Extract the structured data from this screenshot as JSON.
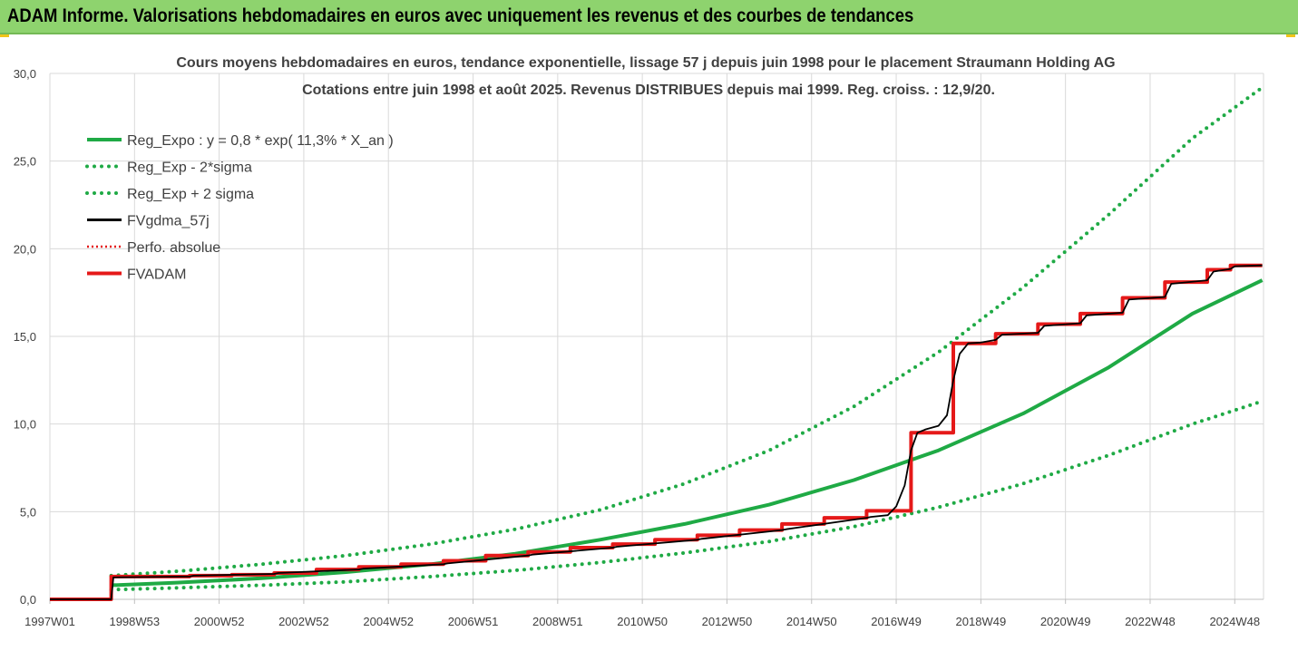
{
  "header": {
    "title": "ADAM Informe. Valorisations hebdomadaires en euros avec uniquement les revenus et des courbes de tendances"
  },
  "colors": {
    "header_bg": "#8ed36e",
    "reg_green": "#1faa45",
    "fvgdma_black": "#000000",
    "fvadam_red": "#e51919",
    "gridline": "#d9d9d9"
  },
  "chart_data": {
    "type": "line",
    "title": [
      "Cours moyens hebdomadaires en euros, tendance exponentielle, lissage 57 j depuis juin 1998 pour le placement Straumann Holding AG",
      "Cotations entre juin 1998 et août 2025. Revenus DISTRIBUES depuis mai 1999. Reg. croiss. : 12,9/20."
    ],
    "x_tick_labels": [
      "1997W01",
      "1998W53",
      "2000W52",
      "2002W52",
      "2004W52",
      "2006W51",
      "2008W51",
      "2010W50",
      "2012W50",
      "2014W50",
      "2016W49",
      "2018W49",
      "2020W49",
      "2022W48",
      "2024W48"
    ],
    "x_range": [
      "1997W01",
      "2025W35"
    ],
    "y_tick_labels": [
      "0,0",
      "5,0",
      "10,0",
      "15,0",
      "20,0",
      "25,0",
      "30,0"
    ],
    "ylim": [
      0,
      30
    ],
    "grid": true,
    "legend_position": "top-left",
    "legend": [
      {
        "name": "Reg_Expo : y = 0,8 * exp( 11,3% *  X_an )",
        "color": "#1faa45",
        "style": "solid"
      },
      {
        "name": "Reg_Exp - 2*sigma",
        "color": "#1faa45",
        "style": "dotted"
      },
      {
        "name": "Reg_Exp + 2 sigma",
        "color": "#1faa45",
        "style": "dotted"
      },
      {
        "name": "FVgdma_57j",
        "color": "#000000",
        "style": "solid"
      },
      {
        "name": "Perfo. absolue",
        "color": "#e51919",
        "style": "dotted"
      },
      {
        "name": "FVADAM",
        "color": "#e51919",
        "style": "solid"
      }
    ],
    "series": {
      "reg_expo": {
        "x": [
          1998.45,
          2000,
          2002,
          2004,
          2006,
          2008,
          2010,
          2012,
          2014,
          2016,
          2018,
          2020,
          2022,
          2024,
          2025.65
        ],
        "y": [
          0.8,
          0.95,
          1.2,
          1.55,
          2.0,
          2.6,
          3.4,
          4.3,
          5.4,
          6.8,
          8.5,
          10.6,
          13.2,
          16.3,
          18.2
        ]
      },
      "reg_minus": {
        "x": [
          1998.45,
          2000,
          2002,
          2004,
          2006,
          2008,
          2010,
          2012,
          2014,
          2016,
          2018,
          2020,
          2022,
          2024,
          2025.65
        ],
        "y": [
          0.55,
          0.65,
          0.8,
          1.0,
          1.3,
          1.65,
          2.1,
          2.65,
          3.3,
          4.15,
          5.25,
          6.6,
          8.2,
          10.0,
          11.3
        ]
      },
      "reg_plus": {
        "x": [
          1998.45,
          2000,
          2002,
          2004,
          2006,
          2008,
          2010,
          2012,
          2014,
          2016,
          2018,
          2020,
          2022,
          2024,
          2025.65
        ],
        "y": [
          1.35,
          1.6,
          2.0,
          2.5,
          3.15,
          4.0,
          5.1,
          6.6,
          8.5,
          11.0,
          14.1,
          17.8,
          21.9,
          26.3,
          29.2
        ]
      },
      "fvadam": {
        "x": [
          1997.0,
          1998.45,
          1998.45,
          2000.3,
          2000.3,
          2001.3,
          2001.3,
          2002.3,
          2002.3,
          2003.3,
          2003.3,
          2004.3,
          2004.3,
          2005.3,
          2005.3,
          2006.3,
          2006.3,
          2007.3,
          2007.3,
          2008.3,
          2008.3,
          2009.3,
          2009.3,
          2010.3,
          2010.3,
          2011.3,
          2011.3,
          2012.3,
          2012.3,
          2013.3,
          2013.3,
          2014.3,
          2014.3,
          2015.3,
          2015.3,
          2016.3,
          2016.3,
          2017.35,
          2017.35,
          2018.35,
          2018.35,
          2019.35,
          2019.35,
          2020.35,
          2020.35,
          2021.35,
          2021.35,
          2022.35,
          2022.35,
          2023.35,
          2023.35,
          2024.35,
          2024.35,
          2024.9,
          2024.9,
          2025.65
        ],
        "y": [
          0,
          0,
          1.3,
          1.3,
          1.35,
          1.35,
          1.4,
          1.4,
          1.5,
          1.5,
          1.7,
          1.7,
          1.85,
          1.85,
          2.0,
          2.0,
          2.2,
          2.2,
          2.5,
          2.5,
          2.7,
          2.7,
          2.95,
          2.95,
          3.15,
          3.15,
          3.4,
          3.4,
          3.65,
          3.65,
          3.95,
          3.95,
          4.3,
          4.3,
          4.65,
          4.65,
          5.05,
          5.05,
          9.5,
          9.5,
          14.6,
          14.6,
          15.15,
          15.15,
          15.7,
          15.7,
          16.3,
          16.3,
          17.2,
          17.2,
          18.1,
          18.1,
          18.8,
          18.8,
          19.05,
          19.05
        ]
      },
      "fvgdma": {
        "x": [
          1997.0,
          1998.45,
          1998.5,
          2000.3,
          2000.4,
          2002.3,
          2002.4,
          2004.3,
          2004.4,
          2006.3,
          2006.4,
          2008.3,
          2008.4,
          2010.3,
          2010.4,
          2012.3,
          2012.4,
          2014.3,
          2014.4,
          2016.3,
          2016.4,
          2016.8,
          2017.0,
          2017.2,
          2017.35,
          2017.5,
          2017.7,
          2018.0,
          2018.2,
          2018.35,
          2018.5,
          2018.7,
          2019.0,
          2019.35,
          2019.5,
          2020.35,
          2020.5,
          2021.35,
          2021.5,
          2022.35,
          2022.5,
          2023.35,
          2023.5,
          2024.35,
          2024.5,
          2024.9,
          2025.0,
          2025.65
        ],
        "y": [
          0,
          0,
          1.25,
          1.3,
          1.35,
          1.45,
          1.5,
          1.7,
          1.75,
          2.0,
          2.05,
          2.5,
          2.55,
          2.95,
          3.0,
          3.4,
          3.45,
          3.95,
          4.0,
          4.65,
          4.7,
          4.8,
          5.3,
          6.5,
          8.5,
          9.5,
          9.7,
          9.9,
          10.5,
          12.5,
          14.0,
          14.6,
          14.65,
          14.8,
          15.1,
          15.2,
          15.6,
          15.75,
          16.2,
          16.35,
          17.1,
          17.25,
          18.0,
          18.2,
          18.7,
          18.85,
          19.0,
          19.05
        ]
      }
    }
  }
}
